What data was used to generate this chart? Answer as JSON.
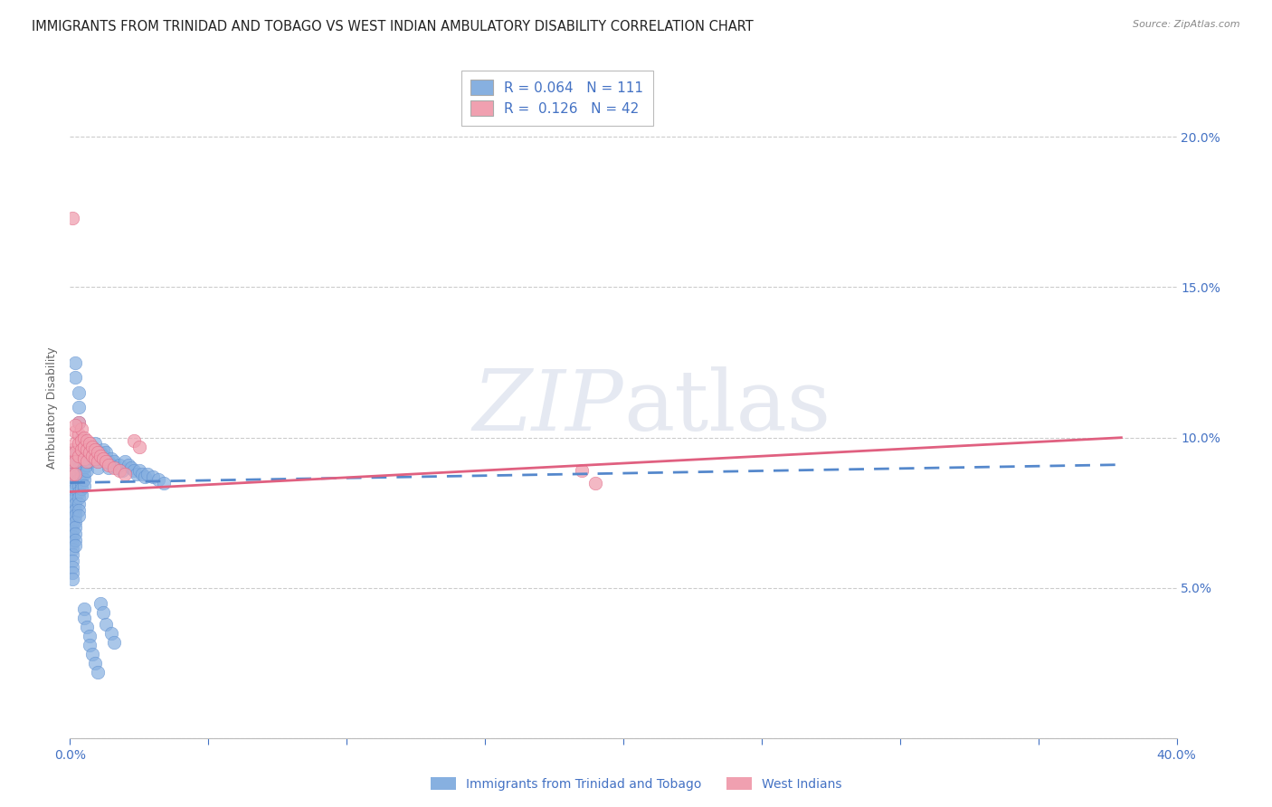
{
  "title": "IMMIGRANTS FROM TRINIDAD AND TOBAGO VS WEST INDIAN AMBULATORY DISABILITY CORRELATION CHART",
  "source": "Source: ZipAtlas.com",
  "ylabel": "Ambulatory Disability",
  "xlim": [
    0.0,
    0.4
  ],
  "ylim": [
    0.0,
    0.22
  ],
  "xticks": [
    0.0,
    0.05,
    0.1,
    0.15,
    0.2,
    0.25,
    0.3,
    0.35,
    0.4
  ],
  "xtick_labels": [
    "0.0%",
    "",
    "",
    "",
    "",
    "",
    "",
    "",
    "40.0%"
  ],
  "yticks": [
    0.0,
    0.05,
    0.1,
    0.15,
    0.2
  ],
  "ytick_labels": [
    "",
    "5.0%",
    "10.0%",
    "15.0%",
    "20.0%"
  ],
  "legend_series1_R": "0.064",
  "legend_series1_N": "111",
  "legend_series2_R": "0.126",
  "legend_series2_N": "42",
  "legend_label1": "Immigrants from Trinidad and Tobago",
  "legend_label2": "West Indians",
  "color_blue": "#87b0e0",
  "color_pink": "#f0a0b0",
  "color_trend_blue": "#5588cc",
  "color_trend_pink": "#e06080",
  "color_axis": "#4472c4",
  "watermark_zip": "ZIP",
  "watermark_atlas": "atlas",
  "background_color": "#ffffff",
  "grid_color": "#cccccc",
  "title_fontsize": 10.5,
  "axis_label_fontsize": 9,
  "tick_fontsize": 10,
  "trend1_x0": 0.0,
  "trend1_y0": 0.085,
  "trend1_x1": 0.38,
  "trend1_y1": 0.091,
  "trend2_x0": 0.0,
  "trend2_y0": 0.082,
  "trend2_x1": 0.38,
  "trend2_y1": 0.1,
  "series1_x": [
    0.001,
    0.001,
    0.001,
    0.001,
    0.001,
    0.001,
    0.001,
    0.001,
    0.001,
    0.001,
    0.001,
    0.001,
    0.001,
    0.001,
    0.001,
    0.001,
    0.001,
    0.002,
    0.002,
    0.002,
    0.002,
    0.002,
    0.002,
    0.002,
    0.002,
    0.002,
    0.002,
    0.002,
    0.002,
    0.003,
    0.003,
    0.003,
    0.003,
    0.003,
    0.003,
    0.003,
    0.003,
    0.003,
    0.003,
    0.004,
    0.004,
    0.004,
    0.004,
    0.004,
    0.004,
    0.004,
    0.005,
    0.005,
    0.005,
    0.005,
    0.005,
    0.005,
    0.006,
    0.006,
    0.006,
    0.006,
    0.007,
    0.007,
    0.007,
    0.008,
    0.008,
    0.008,
    0.009,
    0.009,
    0.01,
    0.01,
    0.01,
    0.011,
    0.011,
    0.012,
    0.012,
    0.013,
    0.014,
    0.014,
    0.015,
    0.015,
    0.016,
    0.017,
    0.018,
    0.019,
    0.02,
    0.021,
    0.022,
    0.023,
    0.024,
    0.025,
    0.026,
    0.027,
    0.028,
    0.03,
    0.032,
    0.034,
    0.002,
    0.002,
    0.003,
    0.003,
    0.003,
    0.004,
    0.005,
    0.005,
    0.006,
    0.007,
    0.007,
    0.008,
    0.009,
    0.01,
    0.011,
    0.012,
    0.013,
    0.015,
    0.016
  ],
  "series1_y": [
    0.086,
    0.082,
    0.079,
    0.076,
    0.074,
    0.071,
    0.069,
    0.067,
    0.065,
    0.063,
    0.061,
    0.059,
    0.057,
    0.055,
    0.053,
    0.091,
    0.095,
    0.088,
    0.085,
    0.083,
    0.08,
    0.078,
    0.076,
    0.074,
    0.072,
    0.07,
    0.068,
    0.066,
    0.064,
    0.092,
    0.09,
    0.088,
    0.086,
    0.084,
    0.082,
    0.08,
    0.078,
    0.076,
    0.074,
    0.093,
    0.091,
    0.089,
    0.087,
    0.085,
    0.083,
    0.081,
    0.094,
    0.092,
    0.09,
    0.088,
    0.086,
    0.084,
    0.095,
    0.093,
    0.091,
    0.089,
    0.096,
    0.094,
    0.092,
    0.097,
    0.095,
    0.093,
    0.098,
    0.096,
    0.094,
    0.092,
    0.09,
    0.095,
    0.093,
    0.096,
    0.094,
    0.095,
    0.092,
    0.09,
    0.093,
    0.091,
    0.092,
    0.09,
    0.091,
    0.089,
    0.092,
    0.091,
    0.09,
    0.089,
    0.088,
    0.089,
    0.088,
    0.087,
    0.088,
    0.087,
    0.086,
    0.085,
    0.125,
    0.12,
    0.115,
    0.11,
    0.105,
    0.1,
    0.043,
    0.04,
    0.037,
    0.034,
    0.031,
    0.028,
    0.025,
    0.022,
    0.045,
    0.042,
    0.038,
    0.035,
    0.032
  ],
  "series2_x": [
    0.001,
    0.001,
    0.001,
    0.001,
    0.002,
    0.002,
    0.002,
    0.002,
    0.002,
    0.003,
    0.003,
    0.003,
    0.003,
    0.004,
    0.004,
    0.004,
    0.005,
    0.005,
    0.005,
    0.006,
    0.006,
    0.006,
    0.007,
    0.007,
    0.008,
    0.008,
    0.009,
    0.009,
    0.01,
    0.01,
    0.011,
    0.012,
    0.013,
    0.014,
    0.016,
    0.018,
    0.02,
    0.185,
    0.19,
    0.002,
    0.023,
    0.025
  ],
  "series2_y": [
    0.173,
    0.096,
    0.092,
    0.088,
    0.102,
    0.098,
    0.095,
    0.092,
    0.088,
    0.105,
    0.101,
    0.098,
    0.094,
    0.103,
    0.099,
    0.096,
    0.1,
    0.097,
    0.093,
    0.099,
    0.096,
    0.092,
    0.098,
    0.095,
    0.097,
    0.094,
    0.096,
    0.093,
    0.095,
    0.092,
    0.094,
    0.093,
    0.092,
    0.091,
    0.09,
    0.089,
    0.088,
    0.089,
    0.085,
    0.104,
    0.099,
    0.097
  ]
}
